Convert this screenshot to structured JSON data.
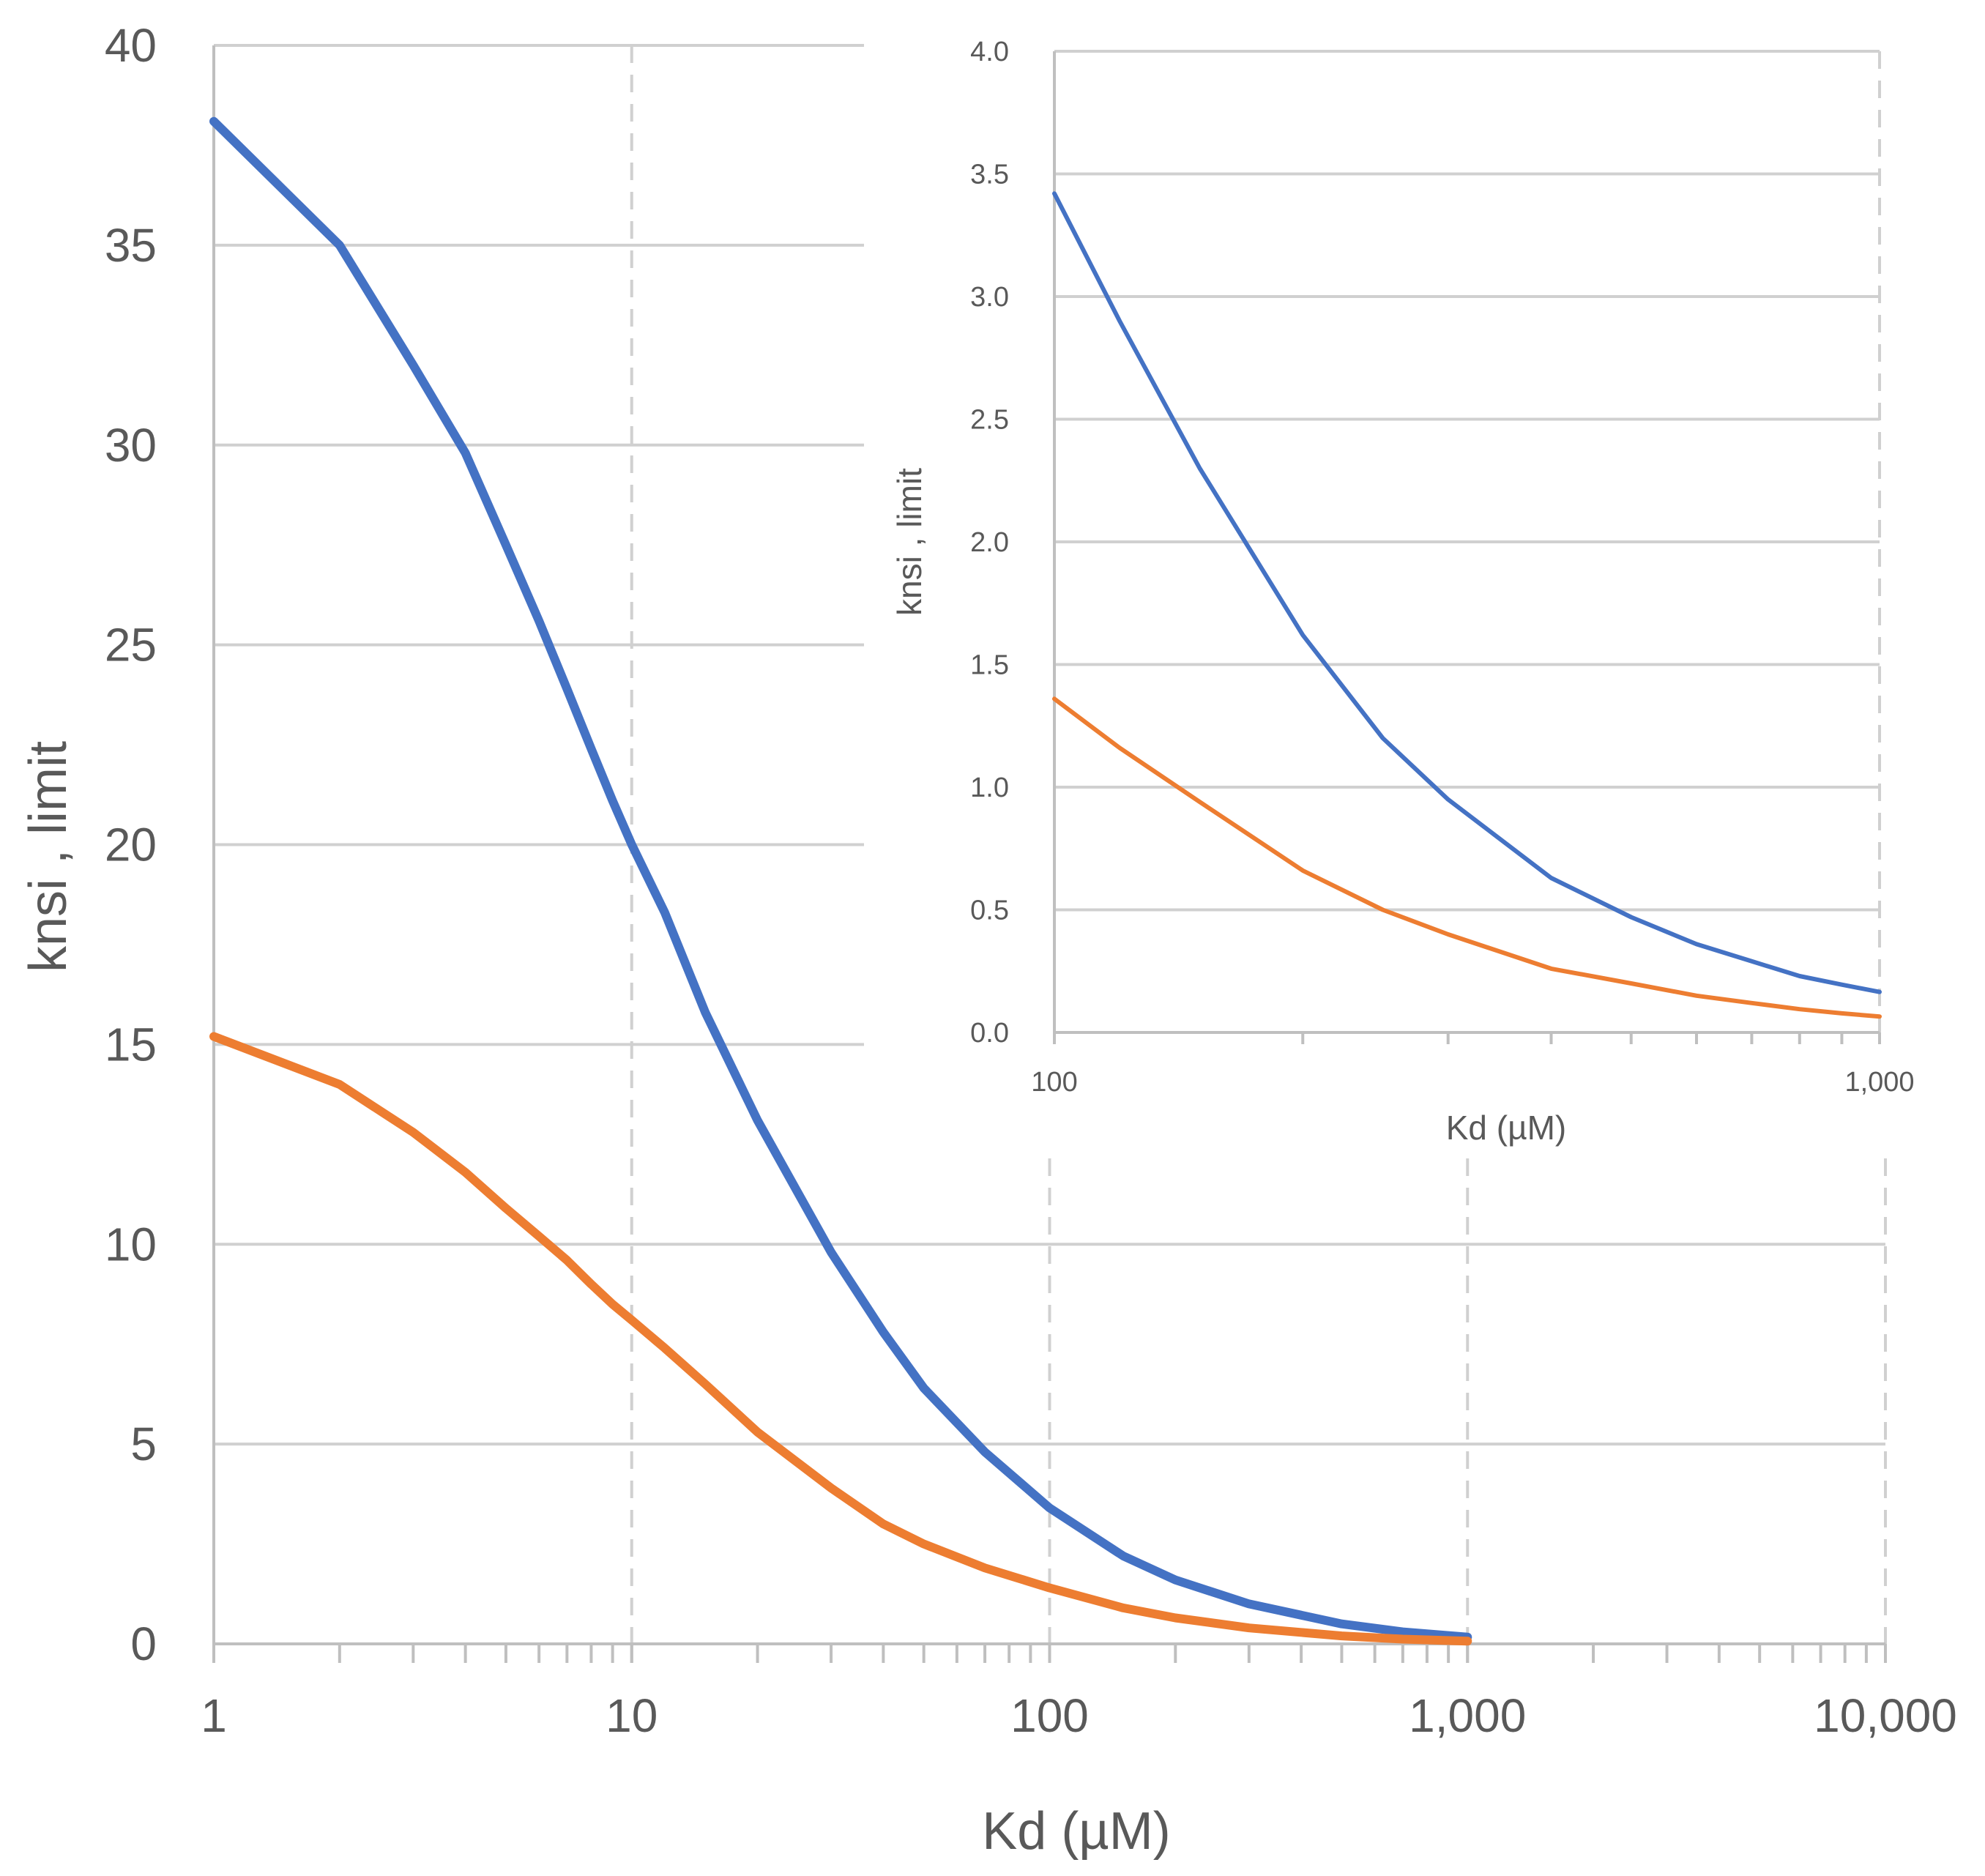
{
  "chart_data": [
    {
      "type": "line",
      "name": "main",
      "title": "",
      "xlabel": "Kd (µM)",
      "ylabel": "knsi , limit",
      "xscale": "log",
      "xlim": [
        1,
        10000
      ],
      "ylim": [
        0,
        40
      ],
      "xticks": [
        1,
        10,
        100,
        1000,
        10000
      ],
      "xtick_labels": [
        "1",
        "10",
        "100",
        "1,000",
        "10,000"
      ],
      "yticks": [
        0,
        5,
        10,
        15,
        20,
        25,
        30,
        35,
        40
      ],
      "ytick_labels": [
        "0",
        "5",
        "10",
        "15",
        "20",
        "25",
        "30",
        "35",
        "40"
      ],
      "grid": true,
      "series": [
        {
          "name": "blue",
          "color": "#4472c4",
          "x": [
            1,
            2,
            3,
            4,
            5,
            6,
            7,
            8,
            9,
            10,
            12,
            15,
            20,
            30,
            40,
            50,
            70,
            100,
            150,
            200,
            300,
            500,
            700,
            1000
          ],
          "y": [
            38.1,
            35.0,
            32.0,
            29.8,
            27.5,
            25.6,
            23.9,
            22.4,
            21.1,
            20.0,
            18.3,
            15.8,
            13.1,
            9.8,
            7.8,
            6.4,
            4.8,
            3.4,
            2.2,
            1.6,
            1.0,
            0.5,
            0.3,
            0.17
          ]
        },
        {
          "name": "orange",
          "color": "#ed7d31",
          "x": [
            1,
            2,
            3,
            4,
            5,
            6,
            7,
            8,
            9,
            10,
            12,
            15,
            20,
            30,
            40,
            50,
            70,
            100,
            150,
            200,
            300,
            500,
            700,
            1000
          ],
          "y": [
            15.2,
            14.0,
            12.8,
            11.8,
            10.9,
            10.2,
            9.6,
            9.0,
            8.5,
            8.1,
            7.4,
            6.5,
            5.3,
            3.9,
            3.0,
            2.5,
            1.9,
            1.4,
            0.9,
            0.65,
            0.4,
            0.2,
            0.12,
            0.07
          ]
        }
      ]
    },
    {
      "type": "line",
      "name": "inset",
      "title": "",
      "xlabel": "Kd (µM)",
      "ylabel": "knsi , limit",
      "xscale": "log",
      "xlim": [
        100,
        1000
      ],
      "ylim": [
        0,
        4
      ],
      "xticks": [
        100,
        1000
      ],
      "xtick_labels": [
        "100",
        "1,000"
      ],
      "yticks": [
        0,
        0.5,
        1,
        1.5,
        2,
        2.5,
        3,
        3.5,
        4
      ],
      "ytick_labels": [
        "0.0",
        "0.5",
        "1.0",
        "1.5",
        "2.0",
        "2.5",
        "3.0",
        "3.5",
        "4.0"
      ],
      "grid": true,
      "series": [
        {
          "name": "blue",
          "color": "#4472c4",
          "x": [
            100,
            120,
            150,
            200,
            250,
            300,
            400,
            500,
            600,
            700,
            800,
            900,
            1000
          ],
          "y": [
            3.42,
            2.9,
            2.3,
            1.62,
            1.2,
            0.95,
            0.63,
            0.47,
            0.36,
            0.29,
            0.23,
            0.195,
            0.165
          ]
        },
        {
          "name": "orange",
          "color": "#ed7d31",
          "x": [
            100,
            120,
            150,
            200,
            250,
            300,
            400,
            500,
            600,
            700,
            800,
            900,
            1000
          ],
          "y": [
            1.36,
            1.16,
            0.94,
            0.66,
            0.5,
            0.4,
            0.26,
            0.2,
            0.15,
            0.12,
            0.095,
            0.078,
            0.065
          ]
        }
      ]
    }
  ]
}
